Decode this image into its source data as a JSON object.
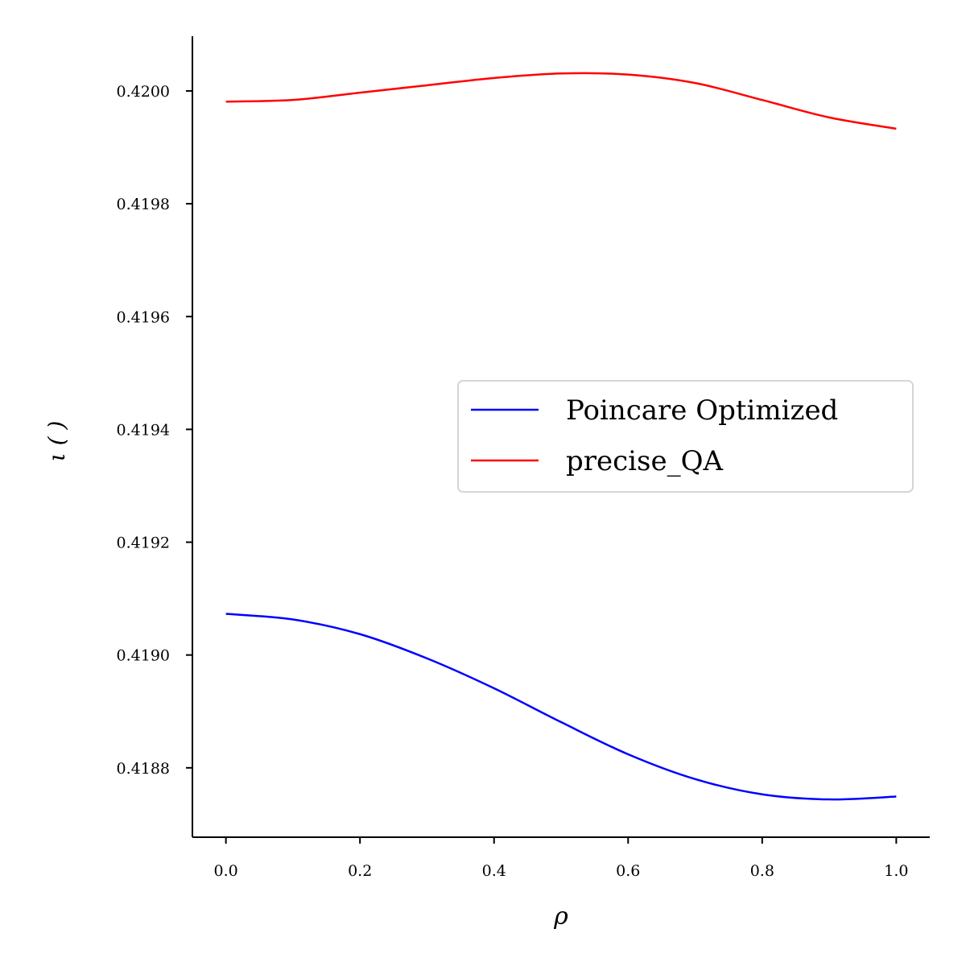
{
  "chart_data": {
    "type": "line",
    "xlabel": "ρ",
    "ylabel": "ι ( )",
    "x": [
      0,
      0.1,
      0.2,
      0.3,
      0.4,
      0.5,
      0.6,
      0.7,
      0.8,
      0.9,
      1.0
    ],
    "series": [
      {
        "name": "Poincare Optimized",
        "color": "#0000ff",
        "values": [
          0.419073,
          0.419063,
          0.419037,
          0.418994,
          0.418941,
          0.418881,
          0.418824,
          0.41878,
          0.418753,
          0.418744,
          0.418749
        ]
      },
      {
        "name": "precise_QA",
        "color": "#ff0000",
        "values": [
          0.419981,
          0.419984,
          0.419997,
          0.42001,
          0.420023,
          0.420031,
          0.420029,
          0.420014,
          0.419984,
          0.419953,
          0.419933
        ]
      }
    ],
    "xlim": [
      -0.05,
      1.05
    ],
    "ylim": [
      0.418677,
      0.420097
    ],
    "xticks": [
      {
        "value": 0,
        "label": "0.0"
      },
      {
        "value": 0.2,
        "label": "0.2"
      },
      {
        "value": 0.4,
        "label": "0.4"
      },
      {
        "value": 0.6,
        "label": "0.6"
      },
      {
        "value": 0.8,
        "label": "0.8"
      },
      {
        "value": 1,
        "label": "1.0"
      }
    ],
    "yticks": [
      {
        "value": 0.4188,
        "label": "0.4188"
      },
      {
        "value": 0.419,
        "label": "0.4190"
      },
      {
        "value": 0.4192,
        "label": "0.4192"
      },
      {
        "value": 0.4194,
        "label": "0.4194"
      },
      {
        "value": 0.4196,
        "label": "0.4196"
      },
      {
        "value": 0.4198,
        "label": "0.4198"
      },
      {
        "value": 0.42,
        "label": "0.4200"
      }
    ],
    "legend": "center right"
  }
}
